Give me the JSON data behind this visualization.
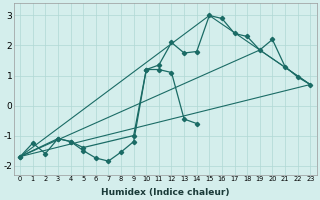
{
  "xlabel": "Humidex (Indice chaleur)",
  "xlim": [
    -0.5,
    23.5
  ],
  "ylim": [
    -2.3,
    3.4
  ],
  "bg_color": "#d4eeec",
  "grid_color": "#b0d8d5",
  "line_color": "#1a6b65",
  "xticks": [
    0,
    1,
    2,
    3,
    4,
    5,
    6,
    7,
    8,
    9,
    10,
    11,
    12,
    13,
    14,
    15,
    16,
    17,
    18,
    19,
    20,
    21,
    22,
    23
  ],
  "yticks": [
    -2,
    -1,
    0,
    1,
    2,
    3
  ],
  "series_main_x": [
    0,
    3,
    4,
    5,
    9,
    10,
    11,
    12,
    13,
    14,
    15,
    16,
    17,
    18,
    19,
    20,
    21,
    22,
    23
  ],
  "series_main_y": [
    -1.7,
    -1.1,
    -1.2,
    -1.4,
    -1.0,
    1.2,
    1.35,
    2.1,
    1.75,
    1.8,
    3.0,
    2.9,
    2.4,
    2.3,
    1.85,
    2.2,
    1.3,
    0.95,
    0.7
  ],
  "series_low_x": [
    0,
    1,
    2,
    3,
    4,
    5,
    6,
    7,
    8,
    9,
    10,
    11,
    12,
    13,
    14
  ],
  "series_low_y": [
    -1.7,
    -1.25,
    -1.6,
    -1.1,
    -1.2,
    -1.5,
    -1.75,
    -1.85,
    -1.55,
    -1.2,
    1.2,
    1.2,
    1.1,
    -0.45,
    -0.6
  ],
  "line1_x": [
    0,
    23
  ],
  "line1_y": [
    -1.7,
    0.7
  ],
  "line2_x": [
    0,
    15,
    23
  ],
  "line2_y": [
    -1.7,
    3.0,
    0.7
  ],
  "line3_x": [
    0,
    19,
    23
  ],
  "line3_y": [
    -1.7,
    1.85,
    0.7
  ]
}
